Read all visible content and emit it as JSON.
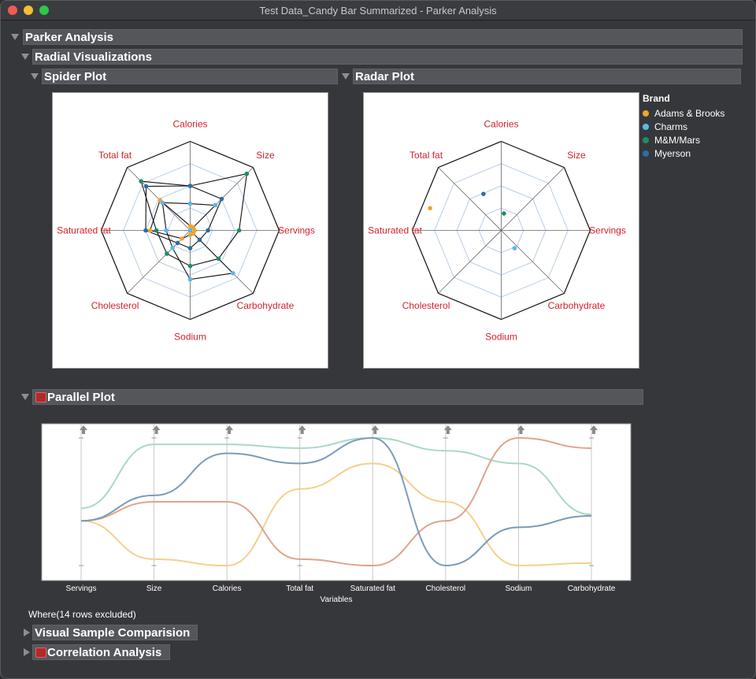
{
  "window": {
    "title": "Test Data_Candy Bar Summarized - Parker Analysis"
  },
  "outline": {
    "root": "Parker Analysis",
    "radial": "Radial Visualizations",
    "spider": "Spider Plot",
    "radar": "Radar Plot",
    "parallel": "Parallel Plot",
    "where": "Where(14 rows excluded)",
    "visual_sample": "Visual Sample Comparision",
    "correlation": "Correlation Analysis"
  },
  "legend": {
    "title": "Brand",
    "items": [
      {
        "label": "Adams & Brooks",
        "color": "#f0a32f"
      },
      {
        "label": "Charms",
        "color": "#5ab8e8"
      },
      {
        "label": "M&M/Mars",
        "color": "#1e8c6a"
      },
      {
        "label": "Myerson",
        "color": "#2a6ea5"
      }
    ]
  },
  "chart_data": [
    {
      "type": "spider",
      "axes": [
        "Calories",
        "Size",
        "Servings",
        "Carbohydrate",
        "Sodium",
        "Cholesterol",
        "Saturated fat",
        "Total fat"
      ],
      "grid_rings": 4,
      "series": [
        {
          "name": "Adams & Brooks",
          "color": "#f0a32f",
          "values": [
            0.05,
            0.05,
            0.05,
            0.05,
            0.05,
            0.13,
            0.45,
            0.48
          ]
        },
        {
          "name": "Charms",
          "color": "#5ab8e8",
          "values": [
            0.3,
            0.4,
            0.0,
            0.68,
            0.55,
            0.28,
            0.27,
            0.44
          ]
        },
        {
          "name": "M&M/Mars",
          "color": "#1e8c6a",
          "values": [
            0.5,
            0.9,
            0.55,
            0.45,
            0.4,
            0.37,
            0.38,
            0.78
          ]
        },
        {
          "name": "Myerson",
          "color": "#2a6ea5",
          "values": [
            0.5,
            0.5,
            0.2,
            0.15,
            0.2,
            0.2,
            0.5,
            0.7
          ]
        }
      ]
    },
    {
      "type": "radar",
      "axes": [
        "Calories",
        "Size",
        "Servings",
        "Carbohydrate",
        "Sodium",
        "Cholesterol",
        "Saturated fat",
        "Total fat"
      ],
      "grid_rings": 4,
      "points": [
        {
          "name": "Adams & Brooks",
          "color": "#f0a32f",
          "x": -0.8,
          "y": 0.25
        },
        {
          "name": "Charms",
          "color": "#5ab8e8",
          "x": 0.15,
          "y": -0.2
        },
        {
          "name": "M&M/Mars",
          "color": "#1e8c6a",
          "x": 0.03,
          "y": 0.19
        },
        {
          "name": "Myerson",
          "color": "#2a6ea5",
          "x": -0.2,
          "y": 0.41
        }
      ]
    },
    {
      "type": "parallel",
      "xlabel": "Variables",
      "categories": [
        "Servings",
        "Size",
        "Calories",
        "Total fat",
        "Saturated fat",
        "Cholesterol",
        "Sodium",
        "Carbohydrate"
      ],
      "ylim": [
        0,
        1
      ],
      "series": [
        {
          "name": "Adams & Brooks",
          "color": "#f5cf8e",
          "values": [
            0.35,
            0.05,
            0.0,
            0.6,
            0.8,
            0.5,
            0.0,
            0.02
          ]
        },
        {
          "name": "Charms",
          "color": "#a8d9c4",
          "values": [
            0.45,
            0.95,
            0.95,
            0.92,
            1.0,
            0.9,
            0.8,
            0.4
          ]
        },
        {
          "name": "M&M/Mars",
          "color": "#e2a38a",
          "values": [
            0.35,
            0.5,
            0.5,
            0.05,
            0.0,
            0.35,
            1.0,
            0.92
          ]
        },
        {
          "name": "Myerson",
          "color": "#7a9cb8",
          "values": [
            0.35,
            0.55,
            0.88,
            0.8,
            1.0,
            0.0,
            0.3,
            0.39
          ]
        }
      ]
    }
  ]
}
